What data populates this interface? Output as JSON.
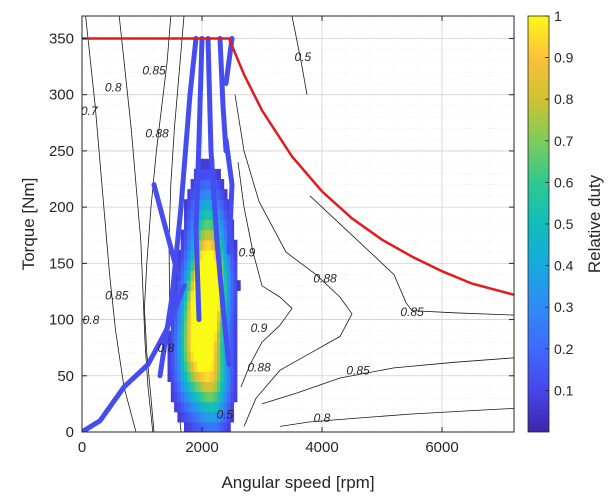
{
  "chart_data": {
    "type": "heatmap",
    "title": "",
    "xlabel": "Angular speed [rpm]",
    "ylabel": "Torque [Nm]",
    "xlim": [
      0,
      7200
    ],
    "ylim": [
      0,
      370
    ],
    "xticks": [
      0,
      2000,
      4000,
      6000
    ],
    "yticks": [
      0,
      50,
      100,
      150,
      200,
      250,
      300,
      350
    ],
    "grid": true,
    "colorbar": {
      "label": "Relative duty",
      "range": [
        0,
        1
      ],
      "ticks": [
        "0.1",
        "0.2",
        "0.3",
        "0.4",
        "0.5",
        "0.6",
        "0.7",
        "0.8",
        "0.9",
        "1"
      ],
      "colormap": [
        "#3e26a8",
        "#4746eb",
        "#3f6afe",
        "#2f8bf3",
        "#17a9de",
        "#10bdbb",
        "#2fc991",
        "#7ecc59",
        "#cfc231",
        "#fcc13a",
        "#f9fb15"
      ]
    },
    "max_torque_curve": {
      "color": "#e41a1c",
      "x": [
        0,
        2450,
        2700,
        3000,
        3500,
        4000,
        4500,
        5000,
        5500,
        6000,
        6500,
        7200
      ],
      "y": [
        350,
        350,
        318,
        286,
        245,
        214,
        190,
        171,
        156,
        143,
        132,
        122
      ]
    },
    "efficiency_contour_labels": [
      {
        "text": "0.7",
        "x": 120,
        "y": 282
      },
      {
        "text": "0.8",
        "x": 520,
        "y": 303
      },
      {
        "text": "0.85",
        "x": 1200,
        "y": 318
      },
      {
        "text": "0.88",
        "x": 1250,
        "y": 262
      },
      {
        "text": "0.85",
        "x": 580,
        "y": 118
      },
      {
        "text": "0.8",
        "x": 150,
        "y": 96
      },
      {
        "text": "0.8",
        "x": 1400,
        "y": 71
      },
      {
        "text": "0.9",
        "x": 2750,
        "y": 156
      },
      {
        "text": "0.88",
        "x": 4050,
        "y": 133
      },
      {
        "text": "0.85",
        "x": 5500,
        "y": 103
      },
      {
        "text": "0.9",
        "x": 2950,
        "y": 89
      },
      {
        "text": "0.88",
        "x": 2950,
        "y": 54
      },
      {
        "text": "0.85",
        "x": 4600,
        "y": 51
      },
      {
        "text": "0.8",
        "x": 4000,
        "y": 9
      },
      {
        "text": "0.5",
        "x": 3680,
        "y": 330
      },
      {
        "text": "0.5",
        "x": 2380,
        "y": 12
      }
    ]
  }
}
